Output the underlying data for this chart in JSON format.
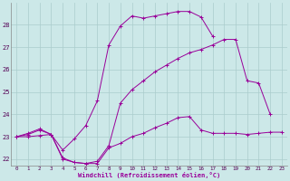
{
  "bg_color": "#cce8e8",
  "grid_color": "#aacccc",
  "line_color": "#990099",
  "xlabel": "Windchill (Refroidissement éolien,°C)",
  "xlim": [
    -0.5,
    23.5
  ],
  "ylim": [
    21.7,
    29.0
  ],
  "yticks": [
    22,
    23,
    24,
    25,
    26,
    27,
    28
  ],
  "xticks": [
    0,
    1,
    2,
    3,
    4,
    5,
    6,
    7,
    8,
    9,
    10,
    11,
    12,
    13,
    14,
    15,
    16,
    17,
    18,
    19,
    20,
    21,
    22,
    23
  ],
  "series1_x": [
    0,
    1,
    2,
    3,
    4,
    5,
    6,
    7,
    8,
    9,
    10,
    11,
    12,
    13,
    14,
    15,
    16,
    17,
    18,
    19,
    20,
    21,
    22,
    23
  ],
  "series1_y": [
    23.0,
    23.0,
    23.05,
    23.1,
    22.05,
    21.85,
    21.8,
    21.8,
    22.5,
    22.7,
    23.0,
    23.15,
    23.4,
    23.6,
    23.85,
    23.9,
    23.3,
    23.15,
    23.15,
    23.15,
    23.1,
    23.15,
    23.2,
    23.2
  ],
  "series2_x": [
    0,
    1,
    2,
    3,
    4,
    5,
    6,
    7,
    8,
    9,
    10,
    11,
    12,
    13,
    14,
    15,
    16,
    17,
    18,
    19,
    20,
    21,
    22
  ],
  "series2_y": [
    23.0,
    23.1,
    23.3,
    23.1,
    22.0,
    21.85,
    21.8,
    21.9,
    22.6,
    24.5,
    25.1,
    25.5,
    25.9,
    26.2,
    26.5,
    26.75,
    26.9,
    27.1,
    27.35,
    27.35,
    25.5,
    25.4,
    24.0
  ],
  "series3_x": [
    0,
    1,
    2,
    3,
    4,
    5,
    6,
    7,
    8,
    9,
    10,
    11,
    12,
    13,
    14,
    15,
    16,
    17
  ],
  "series3_y": [
    23.0,
    23.15,
    23.35,
    23.1,
    22.4,
    22.9,
    23.5,
    24.6,
    27.1,
    27.95,
    28.4,
    28.3,
    28.4,
    28.5,
    28.6,
    28.6,
    28.35,
    27.5
  ]
}
